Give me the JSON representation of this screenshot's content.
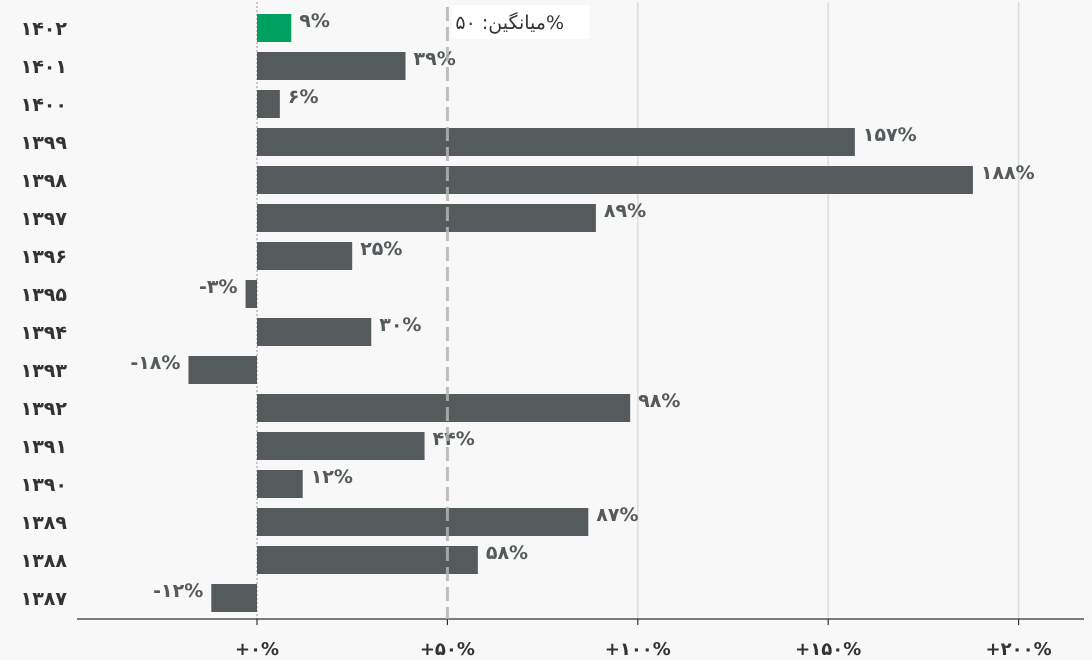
{
  "chart_data": {
    "type": "bar",
    "orientation": "horizontal",
    "categories": [
      "۱۴۰۲",
      "۱۴۰۱",
      "۱۴۰۰",
      "۱۳۹۹",
      "۱۳۹۸",
      "۱۳۹۷",
      "۱۳۹۶",
      "۱۳۹۵",
      "۱۳۹۴",
      "۱۳۹۳",
      "۱۳۹۲",
      "۱۳۹۱",
      "۱۳۹۰",
      "۱۳۸۹",
      "۱۳۸۸",
      "۱۳۸۷"
    ],
    "values": [
      9,
      39,
      6,
      157,
      188,
      89,
      25,
      -3,
      30,
      -18,
      98,
      44,
      12,
      87,
      58,
      -12
    ],
    "value_labels": [
      "۹%",
      "۳۹%",
      "۶%",
      "۱۵۷%",
      "۱۸۸%",
      "۸۹%",
      "۲۵%",
      "-۳%",
      "۳۰%",
      "-۱۸%",
      "۹۸%",
      "۴۴%",
      "۱۲%",
      "۸۷%",
      "۵۸%",
      "-۱۲%"
    ],
    "highlight_index": 0,
    "x_ticks": [
      0,
      50,
      100,
      150,
      200
    ],
    "x_tick_labels": [
      "+۰%",
      "+۵۰%",
      "+۱۰۰%",
      "+۱۵۰%",
      "+۲۰۰%"
    ],
    "xlim": [
      -47,
      217
    ],
    "grid": true,
    "average": {
      "value": 50,
      "label": "میانگین: ۵۰%"
    },
    "colors": {
      "bar": "#555a5c",
      "highlight": "#00a060",
      "average_line": "#b4b4b4",
      "grid": "#dddddd",
      "background": "#f8f8f8"
    }
  }
}
